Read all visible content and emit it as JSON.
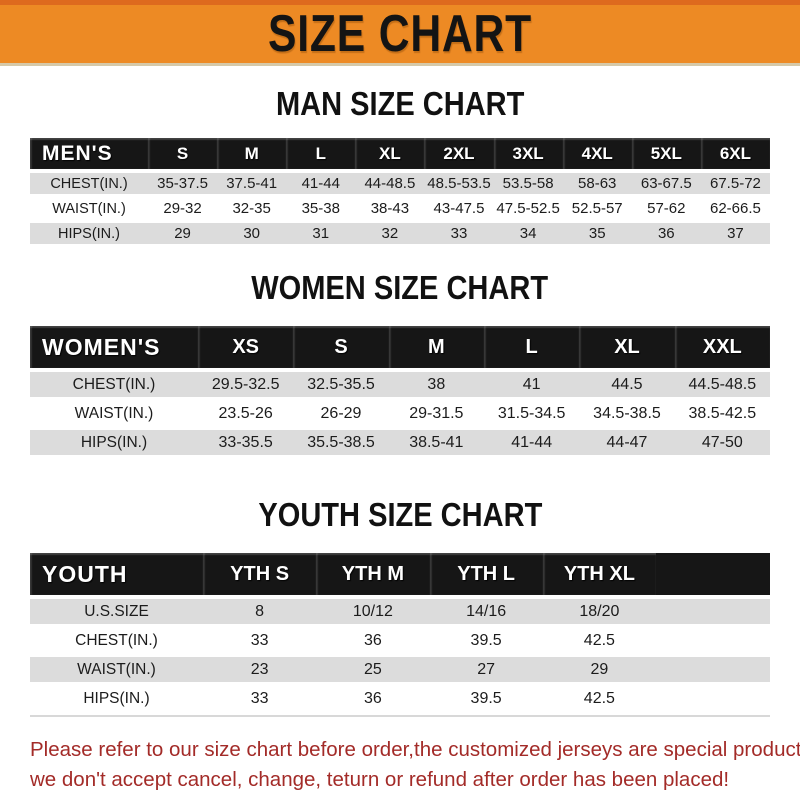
{
  "banner": {
    "title": "SIZE CHART"
  },
  "colors": {
    "banner_bg": "#ED8A24",
    "table_bar_bg": "#161616",
    "row_stripe": "#DCDCDC",
    "footer_text": "#A32B28"
  },
  "sections": [
    {
      "heading": "MAN SIZE CHART",
      "table": {
        "header": {
          "label": "MEN'S",
          "columns": [
            "S",
            "M",
            "L",
            "XL",
            "2XL",
            "3XL",
            "4XL",
            "5XL",
            "6XL"
          ]
        },
        "rows": [
          {
            "label": "CHEST(IN.)",
            "values": [
              "35-37.5",
              "37.5-41",
              "41-44",
              "44-48.5",
              "48.5-53.5",
              "53.5-58",
              "58-63",
              "63-67.5",
              "67.5-72"
            ]
          },
          {
            "label": "WAIST(IN.)",
            "values": [
              "29-32",
              "32-35",
              "35-38",
              "38-43",
              "43-47.5",
              "47.5-52.5",
              "52.5-57",
              "57-62",
              "62-66.5"
            ]
          },
          {
            "label": "HIPS(IN.)",
            "values": [
              "29",
              "30",
              "31",
              "32",
              "33",
              "34",
              "35",
              "36",
              "37"
            ]
          }
        ]
      }
    },
    {
      "heading": "WOMEN SIZE CHART",
      "table": {
        "header": {
          "label": "WOMEN'S",
          "columns": [
            "XS",
            "S",
            "M",
            "L",
            "XL",
            "XXL"
          ]
        },
        "rows": [
          {
            "label": "CHEST(IN.)",
            "values": [
              "29.5-32.5",
              "32.5-35.5",
              "38",
              "41",
              "44.5",
              "44.5-48.5"
            ]
          },
          {
            "label": "WAIST(IN.)",
            "values": [
              "23.5-26",
              "26-29",
              "29-31.5",
              "31.5-34.5",
              "34.5-38.5",
              "38.5-42.5"
            ]
          },
          {
            "label": "HIPS(IN.)",
            "values": [
              "33-35.5",
              "35.5-38.5",
              "38.5-41",
              "41-44",
              "44-47",
              "47-50"
            ]
          }
        ]
      }
    },
    {
      "heading": "YOUTH SIZE CHART",
      "table": {
        "header": {
          "label": "YOUTH",
          "columns": [
            "YTH S",
            "YTH M",
            "YTH L",
            "YTH XL"
          ]
        },
        "rows": [
          {
            "label": "U.S.SIZE",
            "values": [
              "8",
              "10/12",
              "14/16",
              "18/20"
            ]
          },
          {
            "label": "CHEST(IN.)",
            "values": [
              "33",
              "36",
              "39.5",
              "42.5"
            ]
          },
          {
            "label": "WAIST(IN.)",
            "values": [
              "23",
              "25",
              "27",
              "29"
            ]
          },
          {
            "label": "HIPS(IN.)",
            "values": [
              "33",
              "36",
              "39.5",
              "42.5"
            ]
          }
        ]
      }
    }
  ],
  "footer": {
    "lines": [
      "Please refer to our size chart before order,the customized jerseys are special products,",
      "we don't accept cancel, change, teturn or refund after order has been placed!"
    ]
  }
}
